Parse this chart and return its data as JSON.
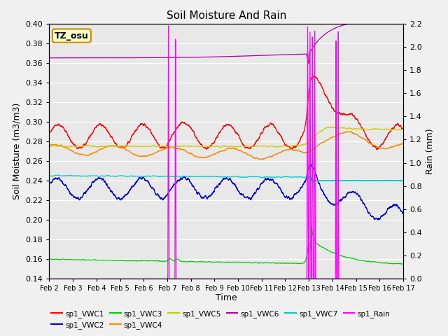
{
  "title": "Soil Moisture And Rain",
  "xlabel": "Time",
  "ylabel_left": "Soil Moisture (m3/m3)",
  "ylabel_right": "Rain (mm)",
  "ylim_left": [
    0.14,
    0.4
  ],
  "ylim_right": [
    0.0,
    2.2
  ],
  "background_color": "#f0f0f0",
  "plot_bg": "#e8e8e8",
  "annotation_text": "TZ_osu",
  "annotation_bg": "#ffffcc",
  "annotation_border": "#cc8800",
  "series_colors": {
    "VWC1": "#ff0000",
    "VWC2": "#0000cc",
    "VWC3": "#00cc00",
    "VWC4": "#ff8800",
    "VWC5": "#cccc00",
    "VWC6": "#aa00aa",
    "VWC7": "#00cccc",
    "Rain": "#ff00ff"
  },
  "legend_labels": [
    "sp1_VWC1",
    "sp1_VWC2",
    "sp1_VWC3",
    "sp1_VWC4",
    "sp1_VWC5",
    "sp1_VWC6",
    "sp1_VWC7",
    "sp1_Rain"
  ],
  "xtick_labels": [
    "Feb 2",
    "Feb 3",
    "Feb 4",
    "Feb 5",
    "Feb 6",
    "Feb 7",
    "Feb 8",
    "Feb 9",
    "Feb 10",
    "Feb 11",
    "Feb 12",
    "Feb 13",
    "Feb 14",
    "Feb 15",
    "Feb 16",
    "Feb 17"
  ],
  "yticks_left": [
    0.14,
    0.16,
    0.18,
    0.2,
    0.22,
    0.24,
    0.26,
    0.28,
    0.3,
    0.32,
    0.34,
    0.36,
    0.38,
    0.4
  ],
  "yticks_right": [
    0.0,
    0.2,
    0.4,
    0.6,
    0.8,
    1.0,
    1.2,
    1.4,
    1.6,
    1.8,
    2.0,
    2.2
  ]
}
